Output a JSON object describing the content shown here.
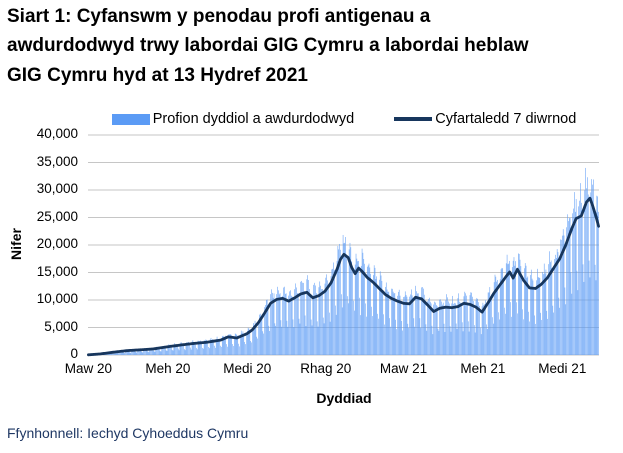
{
  "title": "Siart 1: Cyfanswm y penodau profi antigenau a awdurdodwyd trwy labordai GIG Cymru a labordai heblaw GIG Cymru hyd at 13 Hydref 2021",
  "source": "Ffynhonnell: Iechyd Cyhoeddus Cymru",
  "legend": {
    "bars": "Profion dyddiol a awdurdodwyd",
    "line": "Cyfartaledd 7 diwrnod"
  },
  "colors": {
    "bar": "#5B9BF5",
    "line": "#17365D",
    "grid": "#C6C6C6",
    "source_text": "#1F3864"
  },
  "chart_data": {
    "type": "bar",
    "title": "Siart 1: Cyfanswm y penodau profi antigenau a awdurdodwyd trwy labordai GIG Cymru a labordai heblaw GIG Cymru hyd at 13 Hydref 2021",
    "xlabel": "Dyddiad",
    "ylabel": "Nifer",
    "ylim": [
      0,
      40000
    ],
    "grid": "horizontal",
    "legend_position": "top",
    "days_total": 592,
    "x_start": "Maw 2020",
    "x_end": "13 Hydref 2021",
    "y_ticks": [
      {
        "label": "0",
        "value": 0
      },
      {
        "label": "5,000",
        "value": 5000
      },
      {
        "label": "10,000",
        "value": 10000
      },
      {
        "label": "15,000",
        "value": 15000
      },
      {
        "label": "20,000",
        "value": 20000
      },
      {
        "label": "25,000",
        "value": 25000
      },
      {
        "label": "30,000",
        "value": 30000
      },
      {
        "label": "35,000",
        "value": 35000
      },
      {
        "label": "40,000",
        "value": 40000
      }
    ],
    "x_ticks": [
      {
        "label": "Maw 20",
        "day": 0
      },
      {
        "label": "Meh 20",
        "day": 92
      },
      {
        "label": "Medi 20",
        "day": 184
      },
      {
        "label": "Rhag 20",
        "day": 275
      },
      {
        "label": "Maw 21",
        "day": 365
      },
      {
        "label": "Meh 21",
        "day": 457
      },
      {
        "label": "Medi 21",
        "day": 549
      }
    ],
    "series": [
      {
        "name": "Cyfartaledd 7 diwrnod",
        "type": "line",
        "points_day_value": [
          [
            0,
            30
          ],
          [
            14,
            200
          ],
          [
            31,
            550
          ],
          [
            45,
            800
          ],
          [
            61,
            950
          ],
          [
            75,
            1100
          ],
          [
            92,
            1500
          ],
          [
            106,
            1800
          ],
          [
            122,
            2100
          ],
          [
            136,
            2300
          ],
          [
            153,
            2700
          ],
          [
            162,
            3300
          ],
          [
            172,
            3100
          ],
          [
            184,
            3900
          ],
          [
            190,
            4600
          ],
          [
            197,
            5900
          ],
          [
            204,
            7600
          ],
          [
            211,
            9400
          ],
          [
            218,
            10100
          ],
          [
            225,
            10300
          ],
          [
            232,
            9800
          ],
          [
            239,
            10400
          ],
          [
            246,
            11100
          ],
          [
            253,
            11400
          ],
          [
            260,
            10400
          ],
          [
            267,
            10800
          ],
          [
            274,
            11600
          ],
          [
            281,
            13100
          ],
          [
            288,
            15600
          ],
          [
            292,
            17400
          ],
          [
            296,
            18300
          ],
          [
            301,
            17700
          ],
          [
            305,
            15900
          ],
          [
            309,
            14800
          ],
          [
            313,
            15800
          ],
          [
            317,
            15200
          ],
          [
            323,
            14100
          ],
          [
            330,
            13200
          ],
          [
            337,
            12100
          ],
          [
            344,
            11000
          ],
          [
            351,
            10300
          ],
          [
            358,
            9800
          ],
          [
            365,
            9400
          ],
          [
            372,
            9300
          ],
          [
            379,
            10500
          ],
          [
            386,
            10200
          ],
          [
            393,
            9100
          ],
          [
            400,
            7900
          ],
          [
            407,
            8500
          ],
          [
            414,
            8700
          ],
          [
            421,
            8600
          ],
          [
            428,
            8800
          ],
          [
            435,
            9400
          ],
          [
            442,
            9200
          ],
          [
            449,
            8700
          ],
          [
            456,
            7800
          ],
          [
            463,
            9500
          ],
          [
            470,
            11300
          ],
          [
            477,
            12800
          ],
          [
            484,
            14300
          ],
          [
            488,
            15100
          ],
          [
            492,
            14000
          ],
          [
            497,
            15600
          ],
          [
            504,
            13600
          ],
          [
            511,
            12200
          ],
          [
            518,
            12100
          ],
          [
            525,
            12900
          ],
          [
            532,
            14100
          ],
          [
            539,
            15800
          ],
          [
            546,
            17500
          ],
          [
            553,
            20000
          ],
          [
            560,
            23000
          ],
          [
            565,
            24800
          ],
          [
            571,
            25300
          ],
          [
            577,
            27800
          ],
          [
            581,
            28500
          ],
          [
            584,
            27200
          ],
          [
            588,
            25200
          ],
          [
            591,
            23400
          ]
        ]
      },
      {
        "name": "Profion dyddiol a awdurdodwyd",
        "type": "bar",
        "bar_model": {
          "basis": "daily values fluctuate around the 7-day average line",
          "weekday_factors_sun_to_sat": [
            0.5,
            1.12,
            1.2,
            1.16,
            1.12,
            1.06,
            0.62
          ],
          "start_weekday_index": 0,
          "noise_amp": 0.08,
          "max_daily_value": 34200
        }
      }
    ]
  }
}
